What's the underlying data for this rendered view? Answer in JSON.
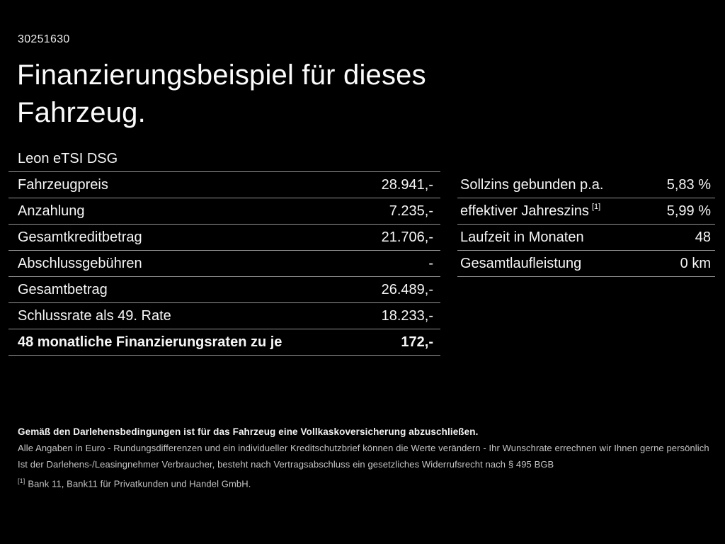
{
  "page": {
    "background_color": "#000000",
    "text_color": "#ffffff",
    "separator_color": "#949494",
    "footer_text_color": "#c6c6c6"
  },
  "header": {
    "id_number": "30251630",
    "title": "Finanzierungsbeispiel für dieses Fahrzeug.",
    "vehicle_model": "Leon eTSI DSG"
  },
  "finance_table_left": {
    "rows": [
      {
        "label": "Fahrzeugpreis",
        "value": "28.941,-",
        "bold": false
      },
      {
        "label": "Anzahlung",
        "value": "7.235,-",
        "bold": false
      },
      {
        "label": "Gesamtkreditbetrag",
        "value": "21.706,-",
        "bold": false
      },
      {
        "label": "Abschlussgebühren",
        "value": "-",
        "bold": false
      },
      {
        "label": "Gesamtbetrag",
        "value": "26.489,-",
        "bold": false
      },
      {
        "label": "Schlussrate als 49. Rate",
        "value": "18.233,-",
        "bold": false
      },
      {
        "label": "48 monatliche Finanzierungsraten zu je",
        "value": "172,-",
        "bold": true
      }
    ]
  },
  "finance_table_right": {
    "rows": [
      {
        "label": "Sollzins gebunden p.a.",
        "value": "5,83 %"
      },
      {
        "label": "effektiver Jahreszins",
        "label_superscript": "[1]",
        "value": "5,99 %"
      },
      {
        "label": "Laufzeit in Monaten",
        "value": "48"
      },
      {
        "label": "Gesamtlaufleistung",
        "value": "0 km"
      }
    ]
  },
  "footer": {
    "insurance_note": "Gemäß den Darlehensbedingungen ist für das Fahrzeug eine Vollkaskoversicherung abzuschließen.",
    "disclaimer_line1": "Alle Angaben in Euro - Rundungsdifferenzen und ein individueller Kreditschutzbrief können die Werte verändern - Ihr Wunschrate errechnen wir Ihnen gerne persönlich",
    "disclaimer_line2": "Ist der Darlehens-/Leasingnehmer Verbraucher, besteht nach Vertragsabschluss ein gesetzliches Widerrufsrecht nach § 495 BGB",
    "footnote_marker": "[1]",
    "footnote_text": "Bank 11, Bank11 für Privatkunden und Handel GmbH."
  }
}
